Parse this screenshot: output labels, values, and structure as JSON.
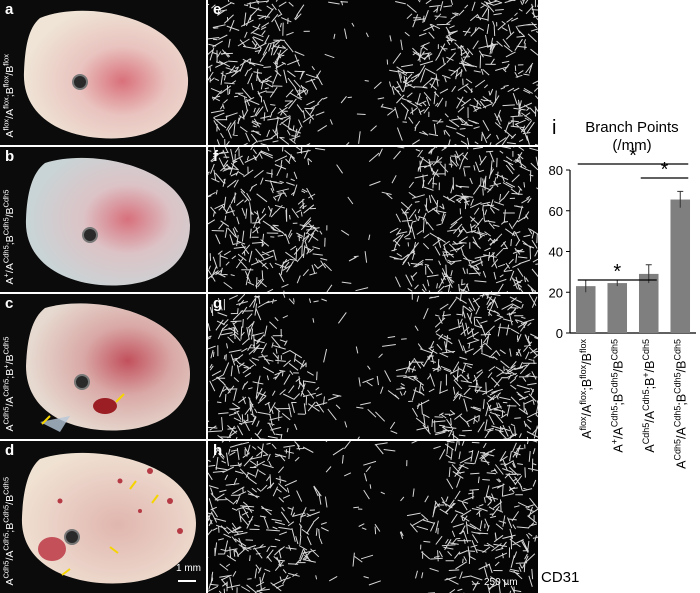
{
  "panels": {
    "a": {
      "label": "a",
      "genotype": [
        [
          "A",
          "flox"
        ],
        [
          "/A",
          "flox"
        ],
        [
          ";B",
          "flox"
        ],
        [
          "/B",
          "flox"
        ]
      ]
    },
    "b": {
      "label": "b",
      "genotype": [
        [
          "A",
          "+"
        ],
        [
          "/A",
          "Cdh5"
        ],
        [
          ";B",
          "Cdh5"
        ],
        [
          "/B",
          "Cdh5"
        ]
      ]
    },
    "c": {
      "label": "c",
      "genotype": [
        [
          "A",
          "Cdh5"
        ],
        [
          "/A",
          "Cdh5"
        ],
        [
          ";B",
          "+"
        ],
        [
          "/B",
          "Cdh5"
        ]
      ]
    },
    "d": {
      "label": "d",
      "genotype": [
        [
          "A",
          "Cdh5"
        ],
        [
          "/A",
          "Cdh5"
        ],
        [
          ";B",
          "Cdh5"
        ],
        [
          "/B",
          "Cdh5"
        ]
      ]
    },
    "e": {
      "label": "e"
    },
    "f": {
      "label": "f"
    },
    "g": {
      "label": "g"
    },
    "h": {
      "label": "h"
    }
  },
  "scale_bars": {
    "embryo": "1 mm",
    "vessel": "250 µm"
  },
  "stain_label": "CD31",
  "chart_data": {
    "type": "bar",
    "panel_label": "i",
    "title": "Branch Points",
    "unit": "(/mm)",
    "categories": [
      [
        [
          "A",
          "flox"
        ],
        [
          "/A",
          "flox"
        ],
        [
          ";B",
          "flox"
        ],
        [
          "/B",
          "flox"
        ]
      ],
      [
        [
          "A",
          "+"
        ],
        [
          "/A",
          "Cdh5"
        ],
        [
          ";B",
          "Cdh5"
        ],
        [
          "/B",
          "Cdh5"
        ]
      ],
      [
        [
          "A",
          "Cdh5"
        ],
        [
          "/A",
          "Cdh5"
        ],
        [
          ";B",
          "+"
        ],
        [
          "/B",
          "Cdh5"
        ]
      ],
      [
        [
          "A",
          "Cdh5"
        ],
        [
          "/A",
          "Cdh5"
        ],
        [
          ";B",
          "Cdh5"
        ],
        [
          "/B",
          "Cdh5"
        ]
      ]
    ],
    "values": [
      23,
      24.5,
      29,
      65.5
    ],
    "errors": [
      3,
      1.5,
      4.5,
      4
    ],
    "ylim": [
      0,
      80
    ],
    "yticks": [
      0,
      20,
      40,
      60,
      80
    ],
    "bar_color": "#7f7f7f",
    "significance": [
      {
        "from": 0,
        "to": 2,
        "label": "*"
      },
      {
        "from": 2,
        "to": 3,
        "label": "*"
      },
      {
        "from": 0,
        "to": 3,
        "label": "*"
      }
    ]
  }
}
